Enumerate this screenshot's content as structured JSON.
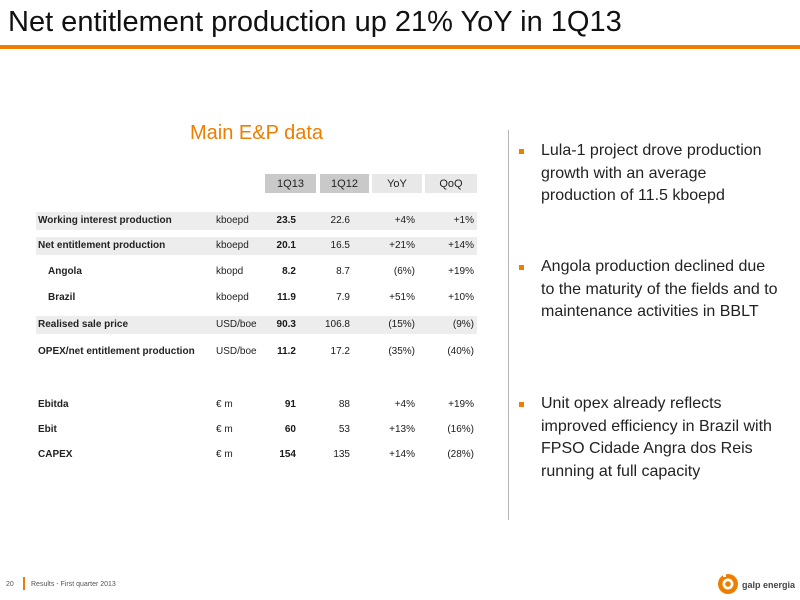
{
  "title": "Net entitlement production up 21% YoY in 1Q13",
  "section_title": "Main E&P data",
  "columns": [
    "1Q13",
    "1Q12",
    "YoY",
    "QoQ"
  ],
  "rows": [
    {
      "label": "Working interest production",
      "unit": "kboepd",
      "v1": "23.5",
      "v2": "22.6",
      "yoy": "+4%",
      "qoq": "+1%"
    },
    {
      "label": "Net entitlement production",
      "unit": "kboepd",
      "v1": "20.1",
      "v2": "16.5",
      "yoy": "+21%",
      "qoq": "+14%"
    },
    {
      "label": "Angola",
      "unit": "kbopd",
      "v1": "8.2",
      "v2": "8.7",
      "yoy": "(6%)",
      "qoq": "+19%"
    },
    {
      "label": "Brazil",
      "unit": "kboepd",
      "v1": "11.9",
      "v2": "7.9",
      "yoy": "+51%",
      "qoq": "+10%"
    },
    {
      "label": "Realised sale price",
      "unit": "USD/boe",
      "v1": "90.3",
      "v2": "106.8",
      "yoy": "(15%)",
      "qoq": "(9%)"
    },
    {
      "label": "OPEX/net entitlement production",
      "unit": "USD/boe",
      "v1": "11.2",
      "v2": "17.2",
      "yoy": "(35%)",
      "qoq": "(40%)"
    },
    {
      "label": "Ebitda",
      "unit": "€ m",
      "v1": "91",
      "v2": "88",
      "yoy": "+4%",
      "qoq": "+19%"
    },
    {
      "label": "Ebit",
      "unit": "€ m",
      "v1": "60",
      "v2": "53",
      "yoy": "+13%",
      "qoq": "(16%)"
    },
    {
      "label": "CAPEX",
      "unit": "€ m",
      "v1": "154",
      "v2": "135",
      "yoy": "+14%",
      "qoq": "(28%)"
    }
  ],
  "bullets": [
    "Lula-1 project drove production growth with an average production of 11.5 kboepd",
    "Angola production declined due to the maturity of the fields and to maintenance activities in BBLT",
    "Unit opex already reflects improved efficiency in Brazil with FPSO Cidade Angra dos Reis running at full capacity"
  ],
  "footer": {
    "page_number": "20",
    "text": "Results - First quarter 2013"
  },
  "logo_text": "galp energia",
  "colors": {
    "accent": "#ee7d00",
    "header_dark": "#c9c9c9",
    "header_light": "#e8e8e8",
    "row_shade": "#ededed"
  }
}
